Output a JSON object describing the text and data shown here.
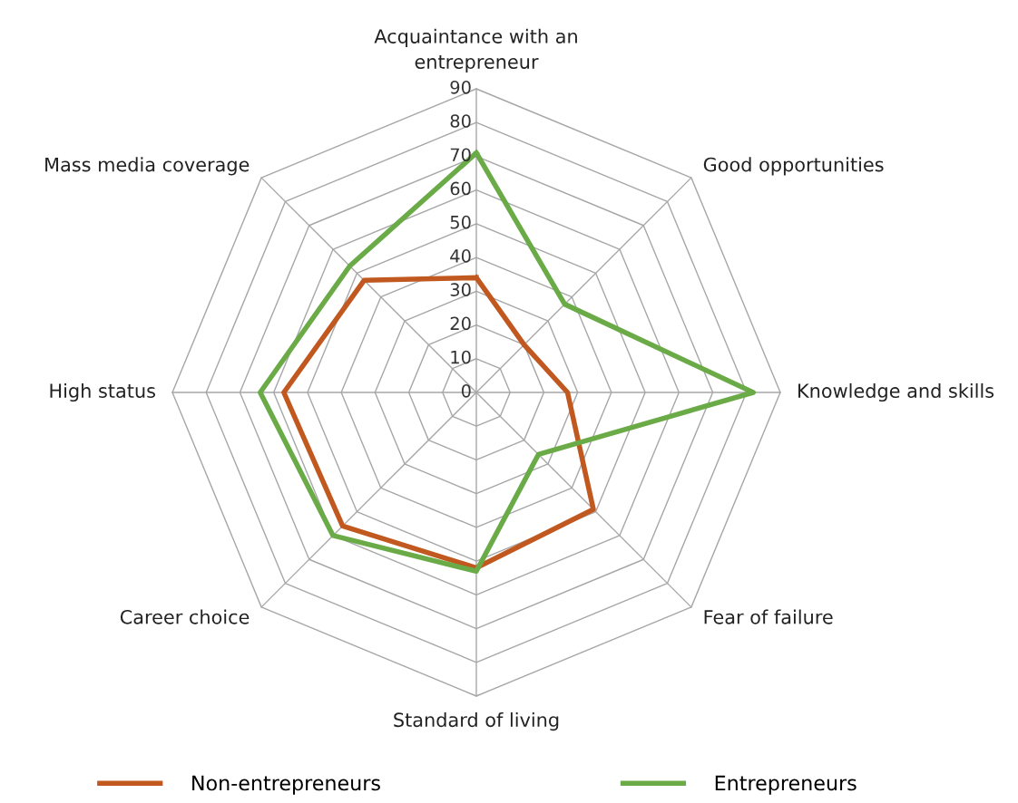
{
  "chart_data": {
    "type": "radar",
    "categories": [
      "Acquaintance with an\nentrepreneur",
      "Good opportunities",
      "Knowledge and skills",
      "Fear of failure",
      "Standard of living",
      "Career choice",
      "High status",
      "Mass media coverage"
    ],
    "series": [
      {
        "name": "Non-entrepreneurs",
        "color": "#c0581f",
        "values": [
          34,
          20,
          27,
          49,
          52,
          56,
          57,
          47
        ]
      },
      {
        "name": "Entrepreneurs",
        "color": "#6aab48",
        "values": [
          71,
          37,
          82,
          26,
          53,
          60,
          64,
          53
        ]
      }
    ],
    "ylim": [
      0,
      90
    ],
    "yticks": [
      0,
      10,
      20,
      30,
      40,
      50,
      60,
      70,
      80,
      90
    ],
    "grid": true,
    "legend": "bottom",
    "marker": "none",
    "line_style": "solid"
  }
}
